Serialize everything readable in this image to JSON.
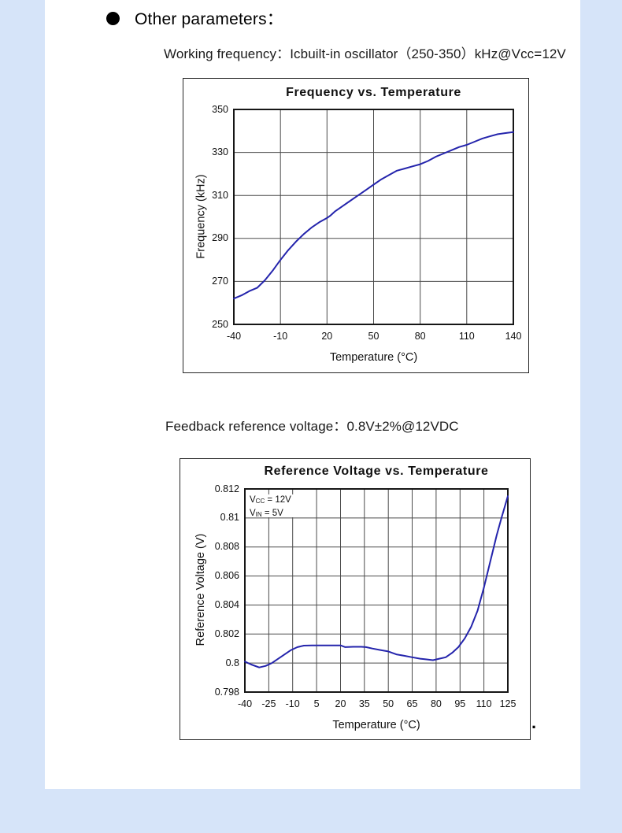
{
  "page": {
    "frame_color": "#d6e4f9",
    "heading": "Other parameters：",
    "working_frequency_line": "Working frequency：Icbuilt-in oscillator（250-350）kHz@Vcc=12V",
    "feedback_line": "Feedback reference voltage：0.8V±2%@12VDC",
    "trailing_dot": "."
  },
  "chart_data": [
    {
      "type": "line",
      "title": "Frequency vs. Temperature",
      "xlabel": "Temperature (°C)",
      "ylabel": "Frequency (kHz)",
      "xlim": [
        -40,
        140
      ],
      "ylim": [
        250,
        350
      ],
      "xticks": [
        -40,
        -10,
        20,
        50,
        80,
        110,
        140
      ],
      "xtick_labels": [
        "-40",
        "-10",
        "20",
        "50",
        "80",
        "110",
        "140"
      ],
      "yticks": [
        250,
        270,
        290,
        310,
        330,
        350
      ],
      "ytick_labels": [
        "250",
        "270",
        "290",
        "310",
        "330",
        "350"
      ],
      "grid": true,
      "legend": null,
      "line_color": "#2424ac",
      "points": [
        [
          -40,
          262
        ],
        [
          -35,
          263.5
        ],
        [
          -30,
          265.5
        ],
        [
          -25,
          267
        ],
        [
          -20,
          270.5
        ],
        [
          -15,
          275
        ],
        [
          -10,
          280
        ],
        [
          -5,
          284.5
        ],
        [
          0,
          288.5
        ],
        [
          5,
          292
        ],
        [
          10,
          295
        ],
        [
          15,
          297.5
        ],
        [
          20,
          299.5
        ],
        [
          22,
          300.5
        ],
        [
          25,
          302.5
        ],
        [
          30,
          305
        ],
        [
          35,
          307.5
        ],
        [
          40,
          310
        ],
        [
          45,
          312.5
        ],
        [
          50,
          315
        ],
        [
          55,
          317.5
        ],
        [
          60,
          319.5
        ],
        [
          65,
          321.5
        ],
        [
          70,
          322.5
        ],
        [
          75,
          323.5
        ],
        [
          80,
          324.5
        ],
        [
          85,
          326
        ],
        [
          90,
          328
        ],
        [
          95,
          329.5
        ],
        [
          100,
          331
        ],
        [
          105,
          332.5
        ],
        [
          110,
          333.5
        ],
        [
          115,
          335
        ],
        [
          120,
          336.5
        ],
        [
          125,
          337.5
        ],
        [
          130,
          338.5
        ],
        [
          135,
          339
        ],
        [
          140,
          339.5
        ]
      ]
    },
    {
      "type": "line",
      "title": "Reference Voltage vs. Temperature",
      "xlabel": "Temperature (°C)",
      "ylabel": "Reference Voltage (V)",
      "xlim": [
        -40,
        125
      ],
      "ylim": [
        0.798,
        0.812
      ],
      "xticks": [
        -40,
        -25,
        -10,
        5,
        20,
        35,
        50,
        65,
        80,
        95,
        110,
        125
      ],
      "xtick_labels": [
        "-40",
        "-25",
        "-10",
        "5",
        "20",
        "35",
        "50",
        "65",
        "80",
        "95",
        "110",
        "125"
      ],
      "yticks": [
        0.798,
        0.8,
        0.802,
        0.804,
        0.806,
        0.808,
        0.81,
        0.812
      ],
      "ytick_labels": [
        "0.798",
        "0.8",
        "0.802",
        "0.804",
        "0.806",
        "0.808",
        "0.81",
        "0.812"
      ],
      "grid": true,
      "legend": null,
      "line_color": "#2424ac",
      "annotation": {
        "v1_name": "V",
        "v1_sub": "CC",
        "v1_val": " = 12V",
        "v2_name": "V",
        "v2_sub": "IN",
        "v2_val": " = 5V"
      },
      "points": [
        [
          -40,
          0.8001
        ],
        [
          -36,
          0.7999
        ],
        [
          -31,
          0.7997
        ],
        [
          -27,
          0.7998
        ],
        [
          -23,
          0.8
        ],
        [
          -19,
          0.8003
        ],
        [
          -15,
          0.8006
        ],
        [
          -11,
          0.8009
        ],
        [
          -7,
          0.8011
        ],
        [
          -3,
          0.8012
        ],
        [
          2,
          0.80122
        ],
        [
          8,
          0.80122
        ],
        [
          14,
          0.80122
        ],
        [
          20,
          0.80122
        ],
        [
          23,
          0.8011
        ],
        [
          28,
          0.80112
        ],
        [
          33,
          0.80112
        ],
        [
          36,
          0.8011
        ],
        [
          40,
          0.801
        ],
        [
          45,
          0.8009
        ],
        [
          50,
          0.8008
        ],
        [
          55,
          0.8006
        ],
        [
          60,
          0.8005
        ],
        [
          65,
          0.8004
        ],
        [
          70,
          0.8003
        ],
        [
          74,
          0.80025
        ],
        [
          78,
          0.8002
        ],
        [
          82,
          0.8003
        ],
        [
          86,
          0.8004
        ],
        [
          90,
          0.8007
        ],
        [
          94,
          0.8011
        ],
        [
          98,
          0.8017
        ],
        [
          102,
          0.8025
        ],
        [
          106,
          0.8036
        ],
        [
          110,
          0.8052
        ],
        [
          114,
          0.807
        ],
        [
          118,
          0.8088
        ],
        [
          121,
          0.81
        ],
        [
          125,
          0.8115
        ]
      ]
    }
  ]
}
